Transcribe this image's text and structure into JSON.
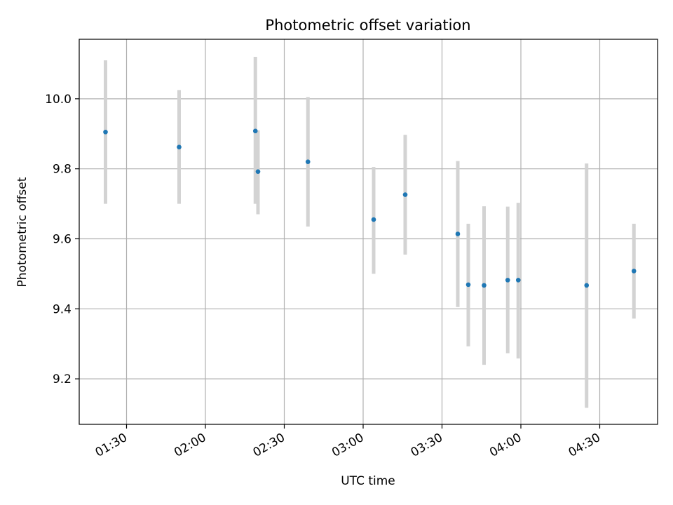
{
  "chart_data": {
    "type": "scatter",
    "title": "Photometric offset variation",
    "xlabel": "UTC time",
    "ylabel": "Photometric offset",
    "x_tick_labels": [
      "01:30",
      "02:00",
      "02:30",
      "03:00",
      "03:30",
      "04:00",
      "04:30"
    ],
    "y_tick_labels": [
      "9.2",
      "9.4",
      "9.6",
      "9.8",
      "10.0"
    ],
    "x_ticks": [
      "01:30",
      "02:00",
      "02:30",
      "03:00",
      "03:30",
      "04:00",
      "04:30"
    ],
    "y_ticks": [
      9.2,
      9.4,
      9.6,
      9.8,
      10.0
    ],
    "xlim": [
      "01:12",
      "04:52"
    ],
    "ylim": [
      9.07,
      10.17
    ],
    "grid": true,
    "marker_color": "#1f77b4",
    "errorbar_color": "#d3d3d3",
    "points": [
      {
        "x": "01:22",
        "y": 9.905,
        "err_low": 9.7,
        "err_high": 10.11
      },
      {
        "x": "01:50",
        "y": 9.862,
        "err_low": 9.7,
        "err_high": 10.025
      },
      {
        "x": "02:19",
        "y": 9.908,
        "err_low": 9.7,
        "err_high": 10.12
      },
      {
        "x": "02:20",
        "y": 9.792,
        "err_low": 9.67,
        "err_high": 9.91
      },
      {
        "x": "02:39",
        "y": 9.82,
        "err_low": 9.635,
        "err_high": 10.005
      },
      {
        "x": "03:04",
        "y": 9.655,
        "err_low": 9.5,
        "err_high": 9.805
      },
      {
        "x": "03:16",
        "y": 9.726,
        "err_low": 9.555,
        "err_high": 9.897
      },
      {
        "x": "03:36",
        "y": 9.614,
        "err_low": 9.405,
        "err_high": 9.822
      },
      {
        "x": "03:40",
        "y": 9.469,
        "err_low": 9.293,
        "err_high": 9.643
      },
      {
        "x": "03:46",
        "y": 9.467,
        "err_low": 9.24,
        "err_high": 9.693
      },
      {
        "x": "03:55",
        "y": 9.482,
        "err_low": 9.273,
        "err_high": 9.692
      },
      {
        "x": "03:59",
        "y": 9.482,
        "err_low": 9.258,
        "err_high": 9.703
      },
      {
        "x": "04:25",
        "y": 9.467,
        "err_low": 9.117,
        "err_high": 9.815
      },
      {
        "x": "04:43",
        "y": 9.508,
        "err_low": 9.372,
        "err_high": 9.643
      }
    ]
  }
}
